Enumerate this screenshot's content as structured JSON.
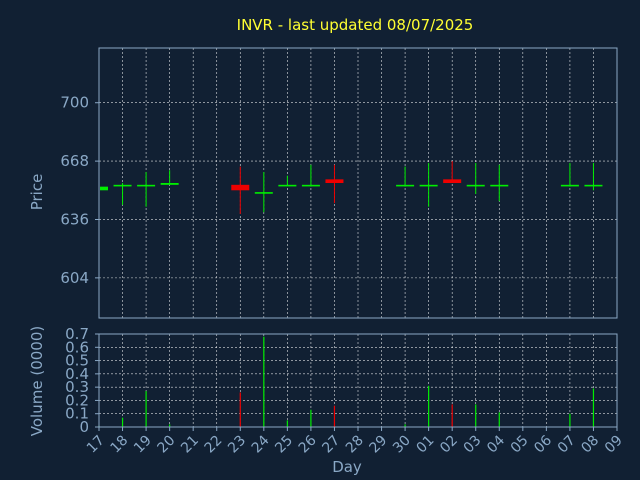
{
  "title": "INVR - last updated 08/07/2025",
  "colors": {
    "background": "#112033",
    "title": "#ffff33",
    "axis_text": "#8aa8c6",
    "up": "#00ee00",
    "down": "#ee0000"
  },
  "chart_data": [
    {
      "type": "candlestick",
      "ylabel": "Price",
      "ylim": [
        582,
        730
      ],
      "yticks": [
        604,
        636,
        668,
        700
      ],
      "grid": true,
      "x_categories": [
        "17",
        "18",
        "19",
        "20",
        "21",
        "22",
        "23",
        "24",
        "25",
        "26",
        "27",
        "28",
        "29",
        "30",
        "01",
        "02",
        "03",
        "04",
        "05",
        "06",
        "07",
        "08",
        "09"
      ],
      "candles": [
        {
          "x": "17",
          "open": 652,
          "high": 655,
          "low": 650,
          "close": 654,
          "dir": "up"
        },
        {
          "x": "18",
          "open": 655,
          "high": 656,
          "low": 644,
          "close": 655,
          "dir": "up"
        },
        {
          "x": "19",
          "open": 655,
          "high": 662,
          "low": 643,
          "close": 655,
          "dir": "up"
        },
        {
          "x": "20",
          "open": 655,
          "high": 663,
          "low": 655,
          "close": 656,
          "dir": "up"
        },
        {
          "x": "23",
          "open": 655,
          "high": 665,
          "low": 639,
          "close": 652,
          "dir": "down"
        },
        {
          "x": "24",
          "open": 651,
          "high": 662,
          "low": 640,
          "close": 651,
          "dir": "up"
        },
        {
          "x": "25",
          "open": 655,
          "high": 660,
          "low": 655,
          "close": 655,
          "dir": "up"
        },
        {
          "x": "26",
          "open": 655,
          "high": 666,
          "low": 654,
          "close": 655,
          "dir": "up"
        },
        {
          "x": "27",
          "open": 658,
          "high": 666,
          "low": 645,
          "close": 656,
          "dir": "down"
        },
        {
          "x": "30",
          "open": 655,
          "high": 665,
          "low": 654,
          "close": 655,
          "dir": "up"
        },
        {
          "x": "01",
          "open": 655,
          "high": 667,
          "low": 643,
          "close": 655,
          "dir": "up"
        },
        {
          "x": "02",
          "open": 658,
          "high": 668,
          "low": 656,
          "close": 656,
          "dir": "down"
        },
        {
          "x": "03",
          "open": 655,
          "high": 667,
          "low": 650,
          "close": 655,
          "dir": "up"
        },
        {
          "x": "04",
          "open": 655,
          "high": 666,
          "low": 646,
          "close": 655,
          "dir": "up"
        },
        {
          "x": "07",
          "open": 655,
          "high": 667,
          "low": 654,
          "close": 655,
          "dir": "up"
        },
        {
          "x": "08",
          "open": 655,
          "high": 667,
          "low": 652,
          "close": 655,
          "dir": "up"
        }
      ]
    },
    {
      "type": "bar",
      "xlabel": "Day",
      "ylabel": "Volume (0000)",
      "ylim": [
        0,
        0.7
      ],
      "yticks": [
        0,
        0.1,
        0.2,
        0.3,
        0.4,
        0.5,
        0.6,
        0.7
      ],
      "ytick_labels": [
        "0",
        "0.1",
        "0.2",
        "0.3",
        "0.4",
        "0.5",
        "0.6",
        "0.7"
      ],
      "grid": true,
      "categories": [
        "17",
        "18",
        "19",
        "20",
        "21",
        "22",
        "23",
        "24",
        "25",
        "26",
        "27",
        "28",
        "29",
        "30",
        "01",
        "02",
        "03",
        "04",
        "05",
        "06",
        "07",
        "08",
        "09"
      ],
      "bars": [
        {
          "x": "17",
          "value": 0.01,
          "dir": "up"
        },
        {
          "x": "18",
          "value": 0.07,
          "dir": "up"
        },
        {
          "x": "19",
          "value": 0.27,
          "dir": "up"
        },
        {
          "x": "20",
          "value": 0.02,
          "dir": "up"
        },
        {
          "x": "23",
          "value": 0.26,
          "dir": "down"
        },
        {
          "x": "24",
          "value": 0.68,
          "dir": "up"
        },
        {
          "x": "25",
          "value": 0.05,
          "dir": "up"
        },
        {
          "x": "26",
          "value": 0.13,
          "dir": "up"
        },
        {
          "x": "27",
          "value": 0.16,
          "dir": "down"
        },
        {
          "x": "30",
          "value": 0.02,
          "dir": "up"
        },
        {
          "x": "01",
          "value": 0.31,
          "dir": "up"
        },
        {
          "x": "02",
          "value": 0.17,
          "dir": "down"
        },
        {
          "x": "03",
          "value": 0.17,
          "dir": "up"
        },
        {
          "x": "04",
          "value": 0.11,
          "dir": "up"
        },
        {
          "x": "07",
          "value": 0.1,
          "dir": "up"
        },
        {
          "x": "08",
          "value": 0.29,
          "dir": "up"
        }
      ]
    }
  ]
}
